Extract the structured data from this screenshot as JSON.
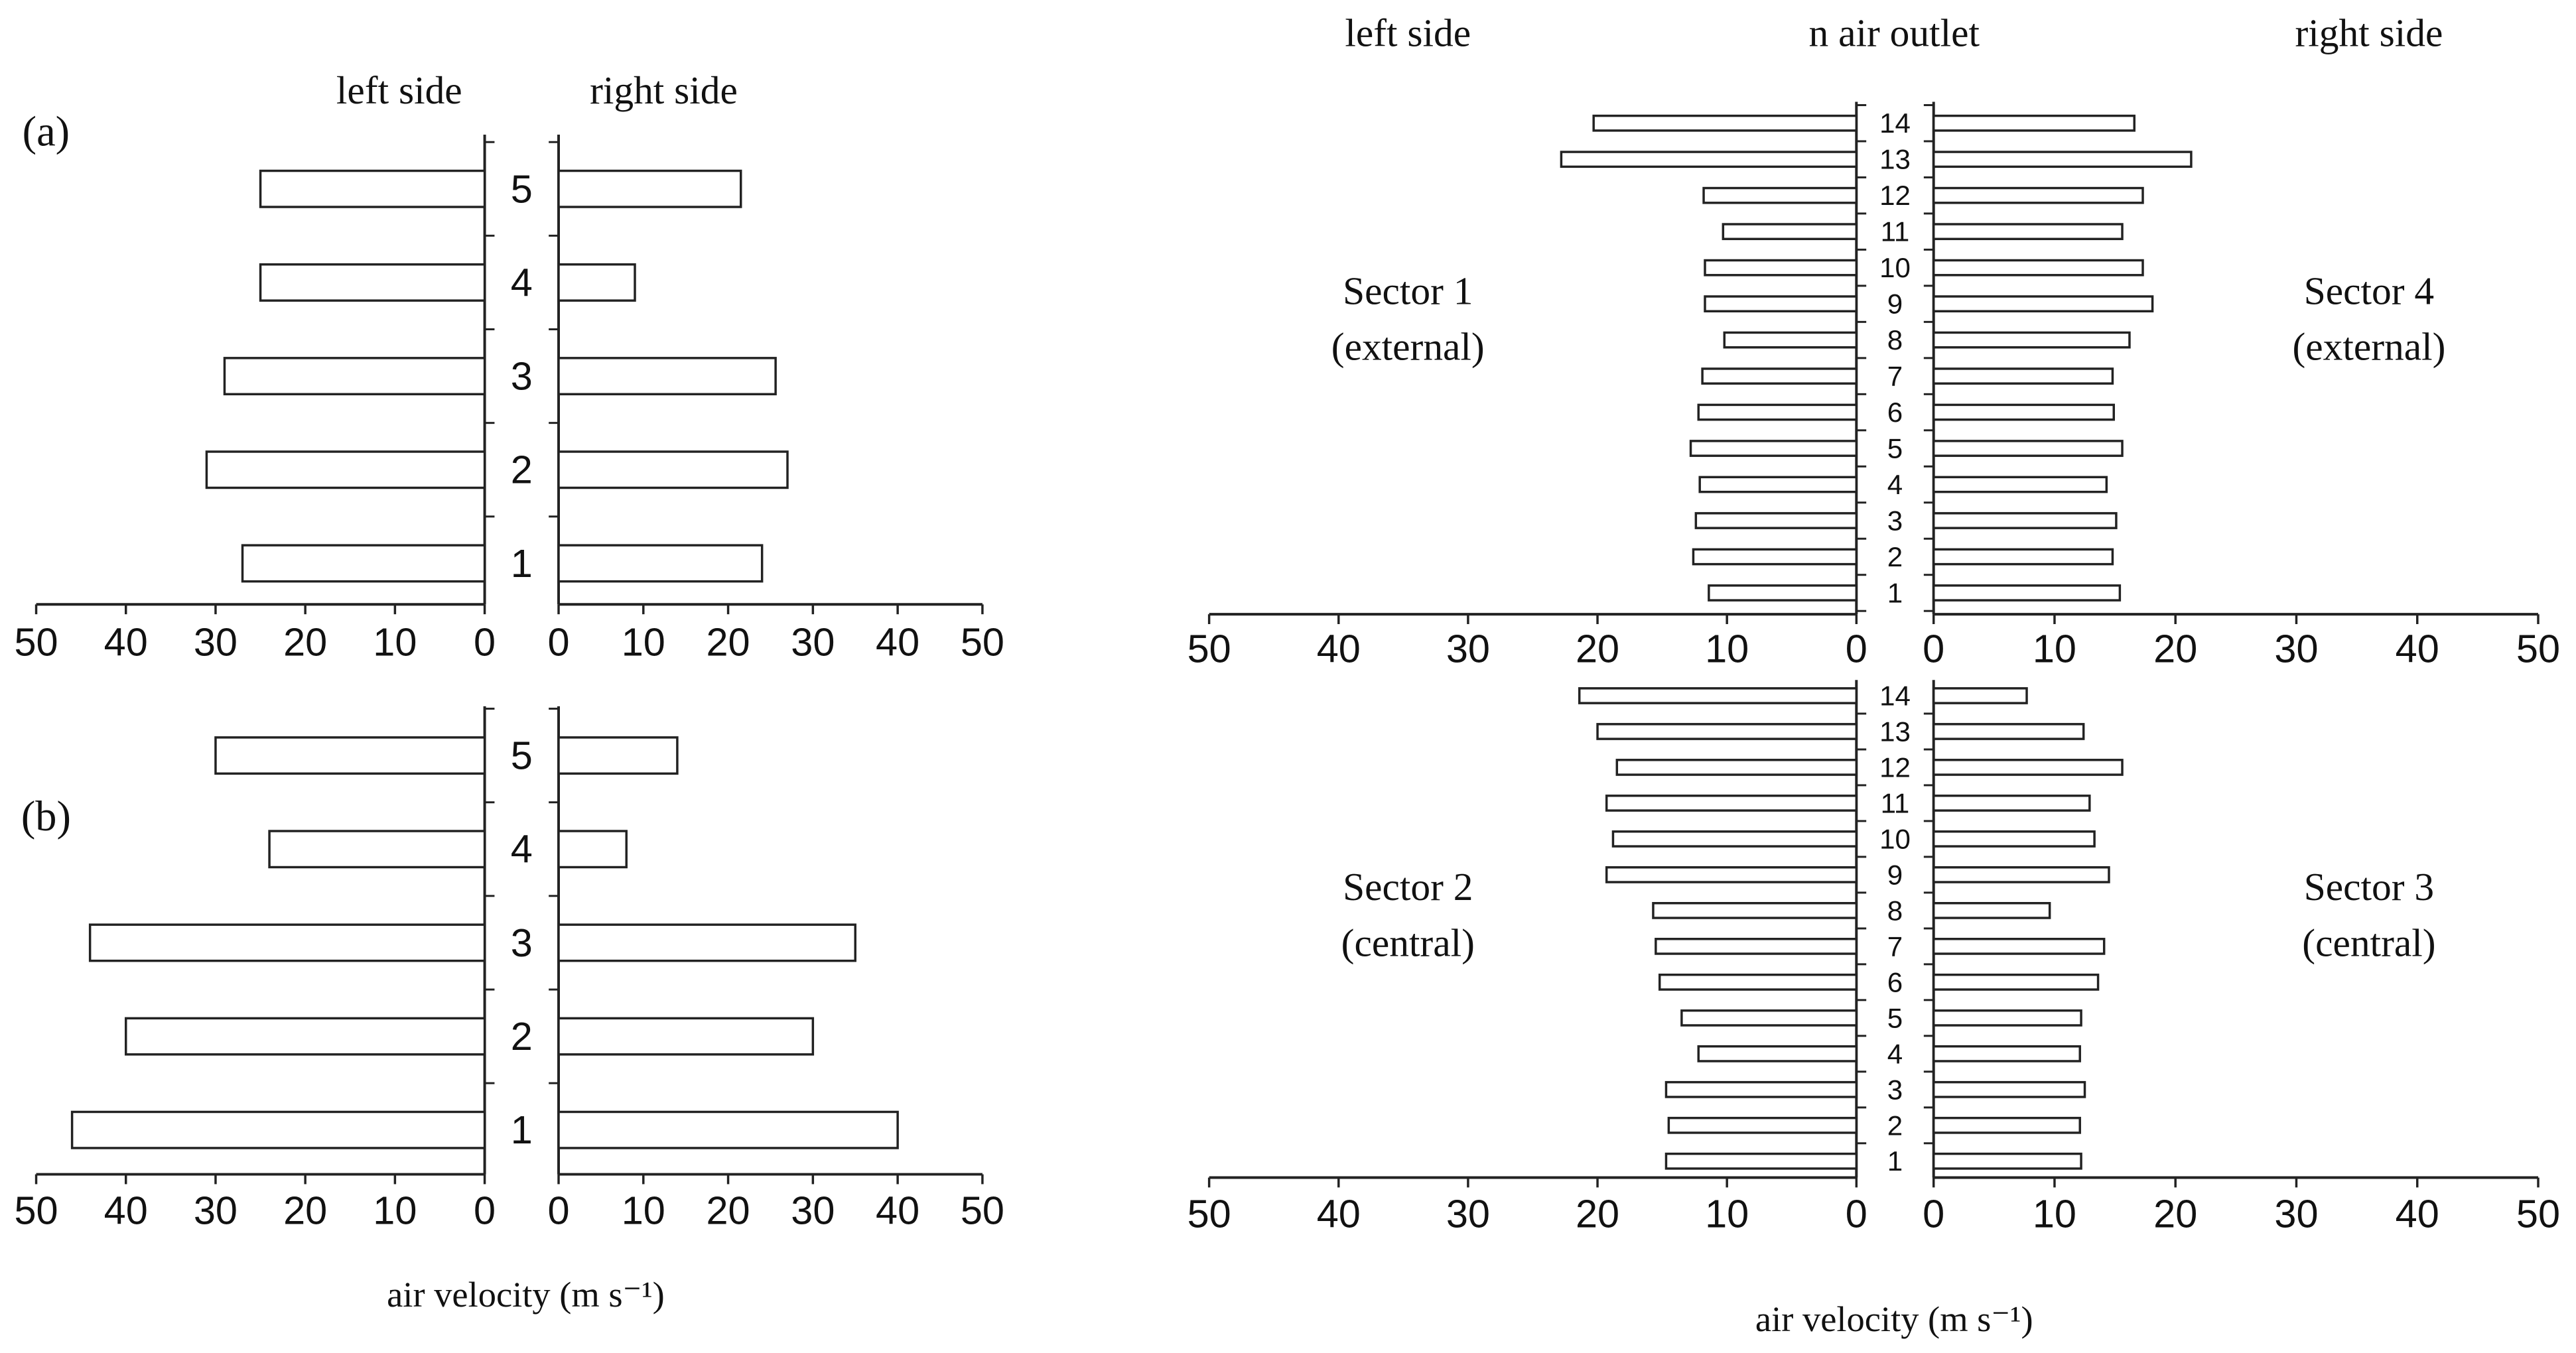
{
  "chart_data": [
    {
      "type": "bar",
      "label": "(a)",
      "categories": [
        "1",
        "2",
        "3",
        "4",
        "5"
      ],
      "series": [
        {
          "name": "left side",
          "color": "#ffffff",
          "edgecolor": "#222222",
          "values": [
            27,
            31,
            29,
            25,
            25
          ]
        },
        {
          "name": "right side",
          "color": "#ffffff",
          "edgecolor": "#222222",
          "values": [
            24,
            27,
            25.6,
            9,
            21.5
          ]
        }
      ],
      "xlim": [
        0,
        50
      ],
      "xticks": [
        0,
        10,
        20,
        30,
        40,
        50
      ]
    },
    {
      "type": "bar",
      "label": "(b)",
      "categories": [
        "1",
        "2",
        "3",
        "4",
        "5"
      ],
      "series": [
        {
          "color": "#ffffff",
          "edgecolor": "#222222",
          "values": [
            46,
            40,
            44,
            24,
            30
          ]
        },
        {
          "color": "#ffffff",
          "edgecolor": "#222222",
          "values": [
            40,
            30,
            35,
            8,
            14
          ]
        }
      ],
      "xlim": [
        0,
        50
      ],
      "xticks": [
        0,
        10,
        20,
        30,
        40,
        50
      ],
      "xlabel": "air velocity (m s⁻¹)"
    },
    {
      "type": "bar",
      "ylabel": "n air outlet",
      "categories": [
        "1",
        "2",
        "3",
        "4",
        "5",
        "6",
        "7",
        "8",
        "9",
        "10",
        "11",
        "12",
        "13",
        "14"
      ],
      "series": [
        {
          "name": "left side",
          "color": "#ffffff",
          "edgecolor": "#222222",
          "values": [
            11.4,
            12.6,
            12.4,
            12.1,
            12.8,
            12.2,
            11.9,
            10.2,
            11.7,
            11.7,
            10.3,
            11.8,
            22.8,
            20.3
          ]
        },
        {
          "name": "right side",
          "color": "#ffffff",
          "edgecolor": "#222222",
          "values": [
            15.4,
            14.8,
            15.1,
            14.3,
            15.6,
            14.9,
            14.8,
            16.2,
            18.1,
            17.3,
            15.6,
            17.3,
            21.3,
            16.6
          ]
        }
      ],
      "left_note": [
        "Sector 1",
        "(external)"
      ],
      "right_note": [
        "Sector 4",
        "(external)"
      ],
      "xlim": [
        0,
        50
      ],
      "xticks": [
        0,
        10,
        20,
        30,
        40,
        50
      ]
    },
    {
      "type": "bar",
      "categories": [
        "1",
        "2",
        "3",
        "4",
        "5",
        "6",
        "7",
        "8",
        "9",
        "10",
        "11",
        "12",
        "13",
        "14"
      ],
      "series": [
        {
          "color": "#ffffff",
          "edgecolor": "#222222",
          "values": [
            14.7,
            14.5,
            14.7,
            12.2,
            13.5,
            15.2,
            15.5,
            15.7,
            19.3,
            18.8,
            19.3,
            18.5,
            20,
            21.4
          ]
        },
        {
          "color": "#ffffff",
          "edgecolor": "#222222",
          "values": [
            12.2,
            12.1,
            12.5,
            12.1,
            12.2,
            13.6,
            14.1,
            9.6,
            14.5,
            13.3,
            12.9,
            15.6,
            12.4,
            7.7
          ]
        }
      ],
      "left_note": [
        "Sector 2",
        "(central)"
      ],
      "right_note": [
        "Sector 3",
        "(central)"
      ],
      "xlim": [
        0,
        50
      ],
      "xticks": [
        0,
        10,
        20,
        30,
        40,
        50
      ],
      "xlabel": "air velocity (m s⁻¹)"
    }
  ]
}
